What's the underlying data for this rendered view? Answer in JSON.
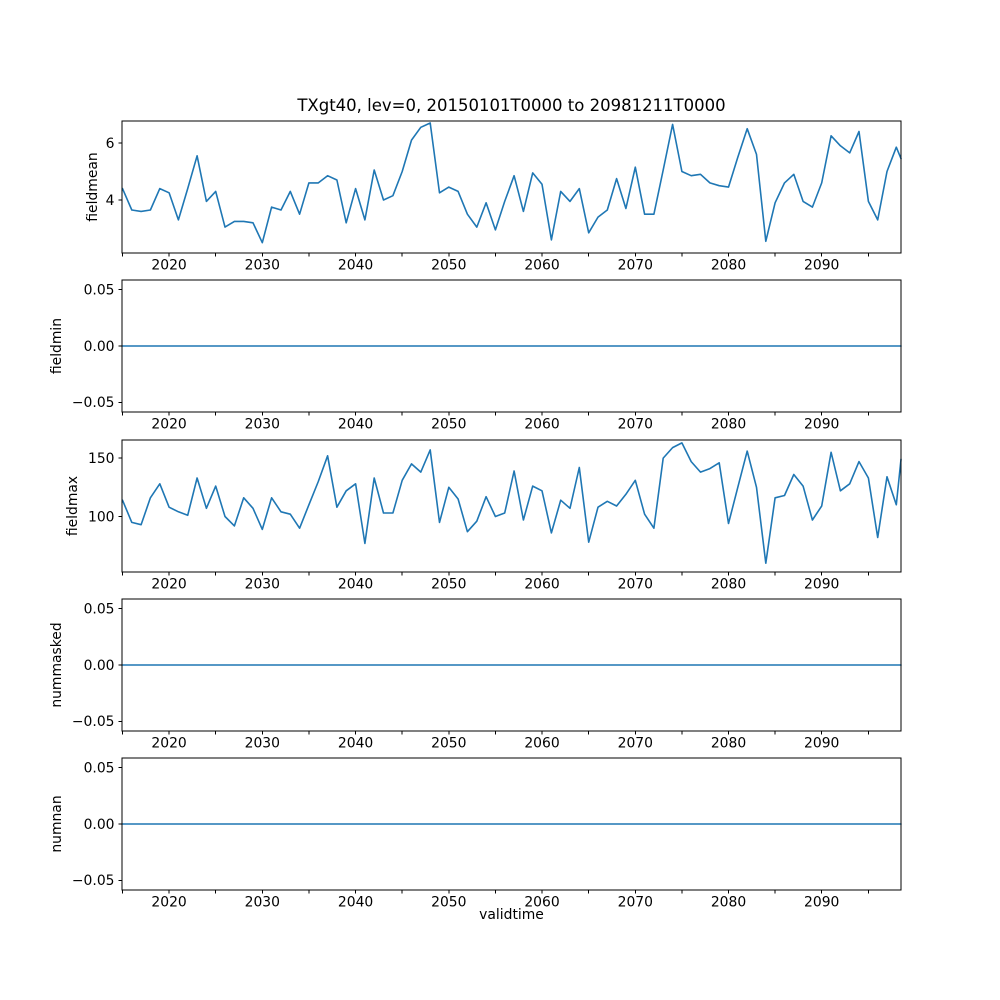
{
  "title": "TXgt40, lev=0, 20150101T0000 to 20981211T0000",
  "xlabel": "validtime",
  "line_color": "#1f77b4",
  "x_axis": {
    "xlim": [
      2014.95,
      2098.5
    ],
    "tick_years": [
      2015,
      2020,
      2025,
      2030,
      2035,
      2040,
      2045,
      2050,
      2055,
      2060,
      2065,
      2070,
      2075,
      2080,
      2085,
      2090,
      2095
    ],
    "decade_values": [
      2020,
      2030,
      2040,
      2050,
      2060,
      2070,
      2080,
      2090
    ],
    "decade_labels": [
      "2020",
      "2030",
      "2040",
      "2050",
      "2060",
      "2070",
      "2080",
      "2090"
    ]
  },
  "x_years": [
    2015,
    2016,
    2017,
    2018,
    2019,
    2020,
    2021,
    2022,
    2023,
    2024,
    2025,
    2026,
    2027,
    2028,
    2029,
    2030,
    2031,
    2032,
    2033,
    2034,
    2035,
    2036,
    2037,
    2038,
    2039,
    2040,
    2041,
    2042,
    2043,
    2044,
    2045,
    2046,
    2047,
    2048,
    2049,
    2050,
    2051,
    2052,
    2053,
    2054,
    2055,
    2056,
    2057,
    2058,
    2059,
    2060,
    2061,
    2062,
    2063,
    2064,
    2065,
    2066,
    2067,
    2068,
    2069,
    2070,
    2071,
    2072,
    2073,
    2074,
    2075,
    2076,
    2077,
    2078,
    2079,
    2080,
    2081,
    2082,
    2083,
    2084,
    2085,
    2086,
    2087,
    2088,
    2089,
    2090,
    2091,
    2092,
    2093,
    2094,
    2095,
    2096,
    2097,
    2098,
    2098.5
  ],
  "chart_data": [
    {
      "type": "line",
      "name": "fieldmean",
      "ylabel": "fieldmean",
      "ylim": [
        2.14,
        6.77
      ],
      "yticks": [
        {
          "v": 4,
          "label": "4"
        },
        {
          "v": 6,
          "label": "6"
        }
      ],
      "grid": false,
      "legend": null,
      "values": [
        4.4,
        3.65,
        3.6,
        3.65,
        4.4,
        4.25,
        3.3,
        4.4,
        5.55,
        3.95,
        4.3,
        3.05,
        3.25,
        3.25,
        3.2,
        2.5,
        3.75,
        3.65,
        4.3,
        3.5,
        4.6,
        4.6,
        4.85,
        4.7,
        3.2,
        4.4,
        3.3,
        5.05,
        4.0,
        4.15,
        5.0,
        6.1,
        6.55,
        6.7,
        4.25,
        4.45,
        4.3,
        3.5,
        3.05,
        3.9,
        2.95,
        3.95,
        4.85,
        3.6,
        4.95,
        4.55,
        2.6,
        4.3,
        3.95,
        4.4,
        2.85,
        3.4,
        3.65,
        4.75,
        3.7,
        5.15,
        3.5,
        3.5,
        5.05,
        6.65,
        5.0,
        4.85,
        4.9,
        4.6,
        4.5,
        4.45,
        5.5,
        6.5,
        5.6,
        2.55,
        3.9,
        4.6,
        4.9,
        3.95,
        3.75,
        4.6,
        6.25,
        5.9,
        5.65,
        6.4,
        3.95,
        3.3,
        5.0,
        5.85,
        5.45
      ]
    },
    {
      "type": "line",
      "name": "fieldmin",
      "ylabel": "fieldmin",
      "ylim": [
        -0.0585,
        0.0585
      ],
      "yticks": [
        {
          "v": -0.05,
          "label": "−0.05"
        },
        {
          "v": 0,
          "label": "0.00"
        },
        {
          "v": 0.05,
          "label": "0.05"
        }
      ],
      "grid": false,
      "legend": null,
      "constant": 0.0
    },
    {
      "type": "line",
      "name": "fieldmax",
      "ylabel": "fieldmax",
      "ylim": [
        52.5,
        165.5
      ],
      "yticks": [
        {
          "v": 100,
          "label": "100"
        },
        {
          "v": 150,
          "label": "150"
        }
      ],
      "grid": false,
      "legend": null,
      "values": [
        114,
        95,
        93,
        116,
        128,
        108,
        104,
        101,
        133,
        107,
        126,
        100,
        92,
        116,
        107,
        89,
        116,
        104,
        102,
        90,
        110,
        130,
        152,
        108,
        122,
        128,
        77,
        133,
        103,
        103,
        131,
        145,
        138,
        157,
        95,
        125,
        115,
        87,
        96,
        117,
        100,
        103,
        139,
        97,
        126,
        122,
        86,
        114,
        107,
        142,
        78,
        108,
        113,
        109,
        119,
        131,
        102,
        90,
        150,
        159,
        163,
        147,
        138,
        141,
        146,
        94,
        125,
        156,
        125,
        60,
        116,
        118,
        136,
        126,
        97,
        109,
        155,
        122,
        128,
        147,
        133,
        82,
        134,
        110,
        149
      ]
    },
    {
      "type": "line",
      "name": "nummasked",
      "ylabel": "nummasked",
      "ylim": [
        -0.0585,
        0.0585
      ],
      "yticks": [
        {
          "v": -0.05,
          "label": "−0.05"
        },
        {
          "v": 0,
          "label": "0.00"
        },
        {
          "v": 0.05,
          "label": "0.05"
        }
      ],
      "grid": false,
      "legend": null,
      "constant": 0.0
    },
    {
      "type": "line",
      "name": "numnan",
      "ylabel": "numnan",
      "ylim": [
        -0.0585,
        0.0585
      ],
      "yticks": [
        {
          "v": -0.05,
          "label": "−0.05"
        },
        {
          "v": 0,
          "label": "0.00"
        },
        {
          "v": 0.05,
          "label": "0.05"
        }
      ],
      "grid": false,
      "legend": null,
      "constant": 0.0
    }
  ]
}
